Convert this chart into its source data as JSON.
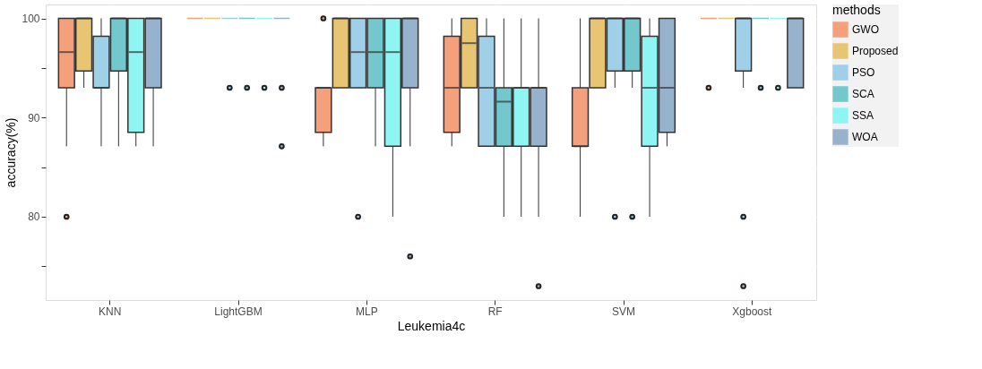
{
  "chart_data": {
    "type": "box",
    "xlabel": "Leukemia4c",
    "ylabel": "accuracy(%)",
    "legend_title": "methods",
    "legend": "right",
    "grid": true,
    "categories": [
      "KNN",
      "LightGBM",
      "MLP",
      "RF",
      "SVM",
      "Xgboost"
    ],
    "ylim": [
      71.6,
      101.4
    ],
    "yticks": [
      {
        "value": 75,
        "label": null
      },
      80,
      {
        "value": 85,
        "label": null
      },
      90,
      {
        "value": 95,
        "label": null
      },
      100
    ],
    "series": [
      {
        "name": "GWO",
        "color": "#f4a07c",
        "boxes": [
          {
            "low": 87.1,
            "q1": 93,
            "median": 96.6,
            "q3": 100,
            "high": 100,
            "outliers": [
              80
            ]
          },
          {
            "low": 100,
            "q1": 100,
            "median": 100,
            "q3": 100,
            "high": 100
          },
          {
            "low": 87.1,
            "q1": 88.5,
            "median": 93,
            "q3": 93,
            "high": 93,
            "outliers": [
              100
            ]
          },
          {
            "low": 87.1,
            "q1": 88.5,
            "median": 93,
            "q3": 98.2,
            "high": 100
          },
          {
            "low": 80,
            "q1": 87.1,
            "median": 87.1,
            "q3": 93,
            "high": 100
          },
          {
            "low": 100,
            "q1": 100,
            "median": 100,
            "q3": 100,
            "high": 100,
            "outliers": [
              93
            ]
          }
        ]
      },
      {
        "name": "Proposed",
        "color": "#e8c572",
        "boxes": [
          {
            "low": 93,
            "q1": 94.7,
            "median": 100,
            "q3": 100,
            "high": 100
          },
          {
            "low": 100,
            "q1": 100,
            "median": 100,
            "q3": 100,
            "high": 100
          },
          {
            "low": 93,
            "q1": 93,
            "median": 100,
            "q3": 100,
            "high": 100
          },
          {
            "low": 93,
            "q1": 93,
            "median": 97.5,
            "q3": 100,
            "high": 100
          },
          {
            "low": 93,
            "q1": 93,
            "median": 100,
            "q3": 100,
            "high": 100
          },
          {
            "low": 100,
            "q1": 100,
            "median": 100,
            "q3": 100,
            "high": 100
          }
        ]
      },
      {
        "name": "PSO",
        "color": "#a0cfe8",
        "boxes": [
          {
            "low": 87.1,
            "q1": 93,
            "median": 93,
            "q3": 98.2,
            "high": 100
          },
          {
            "low": 100,
            "q1": 100,
            "median": 100,
            "q3": 100,
            "high": 100,
            "outliers": [
              93
            ]
          },
          {
            "low": 93,
            "q1": 93,
            "median": 96.6,
            "q3": 100,
            "high": 100,
            "outliers": [
              80
            ]
          },
          {
            "low": 87.1,
            "q1": 87.1,
            "median": 93,
            "q3": 98.2,
            "high": 100
          },
          {
            "low": 93,
            "q1": 94.7,
            "median": 100,
            "q3": 100,
            "high": 100,
            "outliers": [
              80
            ]
          },
          {
            "low": 93,
            "q1": 94.7,
            "median": 100,
            "q3": 100,
            "high": 100,
            "outliers": [
              80,
              73
            ]
          }
        ]
      },
      {
        "name": "SCA",
        "color": "#72c8cc",
        "boxes": [
          {
            "low": 87.1,
            "q1": 94.7,
            "median": 100,
            "q3": 100,
            "high": 100
          },
          {
            "low": 100,
            "q1": 100,
            "median": 100,
            "q3": 100,
            "high": 100,
            "outliers": [
              93
            ]
          },
          {
            "low": 87.1,
            "q1": 93,
            "median": 96.6,
            "q3": 100,
            "high": 100
          },
          {
            "low": 80,
            "q1": 87.1,
            "median": 91.6,
            "q3": 93,
            "high": 100
          },
          {
            "low": 93,
            "q1": 94.7,
            "median": 100,
            "q3": 100,
            "high": 100,
            "outliers": [
              80
            ]
          },
          {
            "low": 100,
            "q1": 100,
            "median": 100,
            "q3": 100,
            "high": 100,
            "outliers": [
              93
            ]
          }
        ]
      },
      {
        "name": "SSA",
        "color": "#8ff5f2",
        "boxes": [
          {
            "low": 87.1,
            "q1": 88.5,
            "median": 96.6,
            "q3": 100,
            "high": 100
          },
          {
            "low": 100,
            "q1": 100,
            "median": 100,
            "q3": 100,
            "high": 100,
            "outliers": [
              93
            ]
          },
          {
            "low": 80,
            "q1": 87.1,
            "median": 96.6,
            "q3": 100,
            "high": 100
          },
          {
            "low": 80,
            "q1": 87.1,
            "median": 93,
            "q3": 93,
            "high": 100
          },
          {
            "low": 80,
            "q1": 87.1,
            "median": 93,
            "q3": 98.2,
            "high": 100
          },
          {
            "low": 100,
            "q1": 100,
            "median": 100,
            "q3": 100,
            "high": 100,
            "outliers": [
              93
            ]
          }
        ]
      },
      {
        "name": "WOA",
        "color": "#97b2cc",
        "boxes": [
          {
            "low": 87.1,
            "q1": 93,
            "median": 100,
            "q3": 100,
            "high": 100
          },
          {
            "low": 100,
            "q1": 100,
            "median": 100,
            "q3": 100,
            "high": 100,
            "outliers": [
              93,
              87.1
            ]
          },
          {
            "low": 87.1,
            "q1": 93,
            "median": 100,
            "q3": 100,
            "high": 100,
            "outliers": [
              76
            ]
          },
          {
            "low": 80,
            "q1": 87.1,
            "median": 93,
            "q3": 93,
            "high": 100,
            "outliers": [
              73
            ]
          },
          {
            "low": 87.1,
            "q1": 88.5,
            "median": 93,
            "q3": 100,
            "high": 100
          },
          {
            "low": 93,
            "q1": 93,
            "median": 100,
            "q3": 100,
            "high": 100
          }
        ]
      }
    ]
  }
}
